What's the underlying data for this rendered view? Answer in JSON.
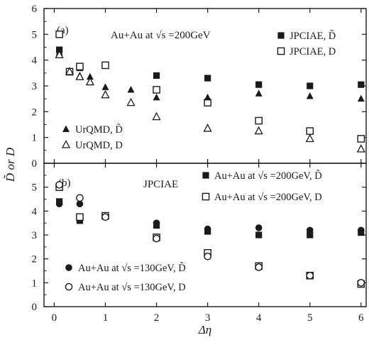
{
  "chart_data": [
    {
      "type": "scatter",
      "panel_label": "(a)",
      "annotation": "Au+Au at √s =200GeV",
      "xlim": [
        -0.2,
        6.1
      ],
      "ylim": [
        0,
        6
      ],
      "yticks": [
        "0",
        "1",
        "2",
        "3",
        "4",
        "5",
        "6"
      ],
      "xticks": [],
      "series": [
        {
          "name": "JPCIAE, D̃",
          "marker": "filled-square",
          "x": [
            0.1,
            0.3,
            0.5,
            1.0,
            2.0,
            3.0,
            4.0,
            5.0,
            6.0
          ],
          "y": [
            4.4,
            3.55,
            3.7,
            3.8,
            3.4,
            3.3,
            3.05,
            3.0,
            3.05
          ]
        },
        {
          "name": "JPCIAE, D",
          "marker": "open-square",
          "x": [
            0.1,
            0.3,
            0.5,
            1.0,
            2.0,
            3.0,
            4.0,
            5.0,
            6.0
          ],
          "y": [
            5.0,
            3.55,
            3.75,
            3.8,
            2.85,
            2.35,
            1.65,
            1.25,
            0.95
          ]
        },
        {
          "name": "UrQMD, D̃",
          "marker": "filled-triangle",
          "x": [
            0.1,
            0.3,
            0.5,
            0.7,
            1.0,
            1.5,
            2.0,
            3.0,
            4.0,
            5.0,
            6.0
          ],
          "y": [
            4.3,
            3.55,
            3.4,
            3.35,
            2.95,
            2.85,
            2.55,
            2.55,
            2.7,
            2.6,
            2.5
          ]
        },
        {
          "name": "UrQMD, D",
          "marker": "open-triangle",
          "x": [
            0.1,
            0.3,
            0.5,
            0.7,
            1.0,
            1.5,
            2.0,
            3.0,
            4.0,
            5.0,
            6.0
          ],
          "y": [
            4.2,
            3.55,
            3.35,
            3.15,
            2.65,
            2.35,
            1.8,
            1.35,
            1.25,
            0.95,
            0.55
          ]
        }
      ]
    },
    {
      "type": "scatter",
      "panel_label": "(b)",
      "annotation": "JPCIAE",
      "xlim": [
        -0.2,
        6.1
      ],
      "ylim": [
        0,
        6
      ],
      "yticks": [
        "0",
        "1",
        "2",
        "3",
        "4",
        "5"
      ],
      "xticks": [
        "0",
        "1",
        "2",
        "3",
        "4",
        "5",
        "6"
      ],
      "xlabel": "Δη",
      "ylabel": "D̃ or D",
      "series": [
        {
          "name": "Au+Au at √s =200GeV, D̃",
          "marker": "filled-square",
          "x": [
            0.1,
            0.5,
            1.0,
            2.0,
            3.0,
            4.0,
            5.0,
            6.0
          ],
          "y": [
            4.4,
            3.6,
            3.8,
            3.4,
            3.15,
            3.0,
            3.0,
            3.1
          ]
        },
        {
          "name": "Au+Au at √s =200GeV, D",
          "marker": "open-square",
          "x": [
            0.1,
            0.5,
            1.0,
            2.0,
            3.0,
            4.0,
            5.0,
            6.0
          ],
          "y": [
            5.0,
            3.75,
            3.8,
            2.9,
            2.25,
            1.7,
            1.3,
            0.95
          ]
        },
        {
          "name": "Au+Au at √s =130GeV, D̃",
          "marker": "filled-circle",
          "x": [
            0.1,
            0.5,
            1.0,
            2.0,
            3.0,
            4.0,
            5.0,
            6.0
          ],
          "y": [
            4.3,
            4.3,
            3.75,
            3.5,
            3.25,
            3.3,
            3.2,
            3.2
          ]
        },
        {
          "name": "Au+Au at √s =130GeV, D",
          "marker": "open-circle",
          "x": [
            0.1,
            0.5,
            1.0,
            2.0,
            3.0,
            4.0,
            5.0,
            6.0
          ],
          "y": [
            5.1,
            4.55,
            3.75,
            2.85,
            2.1,
            1.65,
            1.3,
            1.0
          ]
        }
      ]
    }
  ]
}
